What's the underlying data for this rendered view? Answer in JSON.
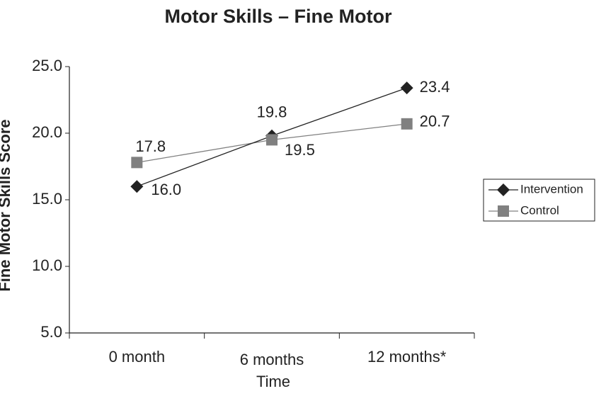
{
  "chart_data": {
    "type": "line",
    "title": "Motor Skills – Fine Motor",
    "x_label": "Time",
    "y_label": "Fine Motor Skills Score",
    "categories": [
      "0 month",
      "6 months",
      "12 months*"
    ],
    "series": [
      {
        "name": "Intervention",
        "color": "#222222",
        "marker": "diamond",
        "values": [
          16.0,
          19.8,
          23.4
        ],
        "value_labels": [
          "16.0",
          "19.8",
          "23.4"
        ]
      },
      {
        "name": "Control",
        "color": "#808080",
        "marker": "square",
        "values": [
          17.8,
          19.5,
          20.7
        ],
        "value_labels": [
          "17.8",
          "19.5",
          "20.7"
        ]
      }
    ],
    "ylim": [
      5,
      25
    ],
    "yticks": [
      {
        "value": 5,
        "label": "5.0"
      },
      {
        "value": 10,
        "label": "10.0"
      },
      {
        "value": 15,
        "label": "15.0"
      },
      {
        "value": 20,
        "label": "20.0"
      },
      {
        "value": 25,
        "label": "25.0"
      }
    ],
    "grid": false,
    "legend": "right"
  }
}
